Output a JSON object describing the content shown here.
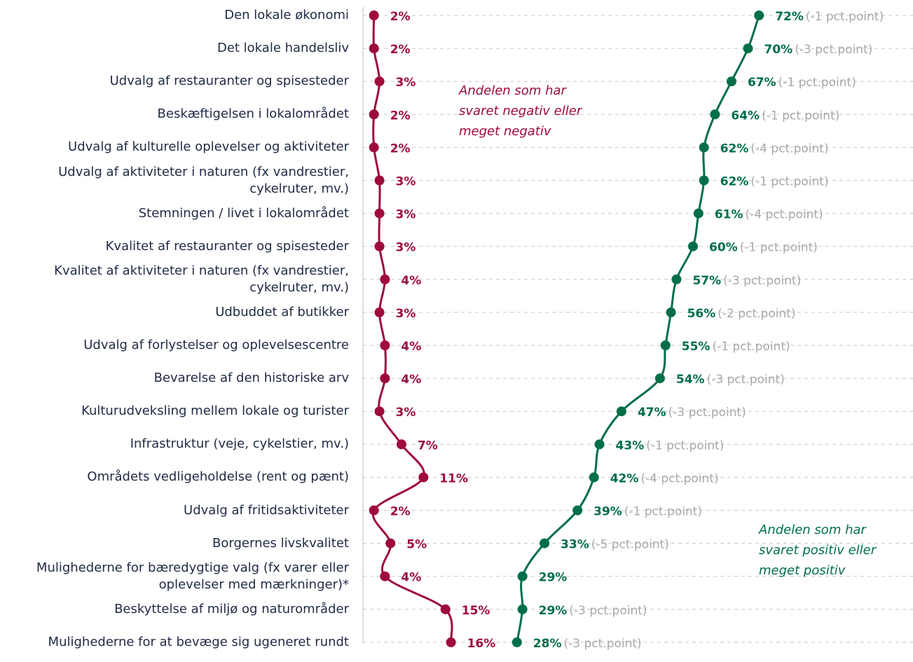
{
  "chart_data": {
    "type": "line",
    "orientation": "horizontal",
    "categories": [
      "Den lokale økonomi",
      "Det lokale handelsliv",
      "Udvalg af restauranter og spisesteder",
      "Beskæftigelsen i lokalområdet",
      "Udvalg af kulturelle oplevelser og aktiviteter",
      "Udvalg af aktiviteter i naturen (fx vandrestier, cykelruter, mv.)",
      "Stemningen / livet i lokalområdet",
      "Kvalitet af restauranter og spisesteder",
      "Kvalitet af aktiviteter i naturen (fx vandrestier, cykelruter, mv.)",
      "Udbuddet af butikker",
      "Udvalg af forlystelser og oplevelsescentre",
      "Bevarelse af den historiske arv",
      "Kulturudveksling mellem lokale og turister",
      "Infrastruktur (veje, cykelstier, mv.)",
      "Områdets vedligeholdelse (rent og pænt)",
      "Udvalg af fritidsaktiviteter",
      "Borgernes livskvalitet",
      "Mulighederne for bæredygtige valg (fx varer eller oplevelser med mærkninger)*",
      "Beskyttelse af miljø og naturområder",
      "Mulighederne for at bevæge sig ugeneret rundt"
    ],
    "series": [
      {
        "name": "Andelen som har svaret negativ eller meget negativ",
        "color": "#9e0b3b",
        "values": [
          2,
          2,
          3,
          2,
          2,
          3,
          3,
          3,
          4,
          3,
          4,
          4,
          3,
          7,
          11,
          2,
          5,
          4,
          15,
          16
        ],
        "value_labels": [
          "2%",
          "2%",
          "3%",
          "2%",
          "2%",
          "3%",
          "3%",
          "3%",
          "4%",
          "3%",
          "4%",
          "4%",
          "3%",
          "7%",
          "11%",
          "2%",
          "5%",
          "4%",
          "15%",
          "16%"
        ]
      },
      {
        "name": "Andelen som har svaret positiv eller meget positiv",
        "color": "#006f48",
        "values": [
          72,
          70,
          67,
          64,
          62,
          62,
          61,
          60,
          57,
          56,
          55,
          54,
          47,
          43,
          42,
          39,
          33,
          29,
          29,
          28
        ],
        "value_labels": [
          "72%",
          "70%",
          "67%",
          "64%",
          "62%",
          "62%",
          "61%",
          "60%",
          "57%",
          "56%",
          "55%",
          "54%",
          "47%",
          "43%",
          "42%",
          "39%",
          "33%",
          "29%",
          "29%",
          "28%"
        ],
        "change_labels": [
          "(-1 pct.point)",
          "(-3 pct.point)",
          "(-1 pct.point)",
          "(-1 pct.point)",
          "(-4 pct.point)",
          "(-1 pct.point)",
          "(-4 pct.point)",
          "(-1 pct.point)",
          "(-3 pct.point)",
          "(-2 pct.point)",
          "(-1 pct.point)",
          "(-3 pct.point)",
          "(-3 pct.point)",
          "(-1 pct.point)",
          "(-4 pct.point)",
          "(-1 pct.point)",
          "(-5 pct.point)",
          null,
          "(-3 pct.point)",
          "(-3 pct.point)"
        ]
      }
    ],
    "annotations": [
      {
        "lines": [
          "Andelen som har",
          "svaret negativ eller",
          "meget negativ"
        ],
        "color": "#9e0b3b"
      },
      {
        "lines": [
          "Andelen som har",
          "svaret positiv eller",
          "meget positiv"
        ],
        "color": "#006f48"
      }
    ],
    "xlim": [
      0,
      100
    ],
    "grid": true
  }
}
